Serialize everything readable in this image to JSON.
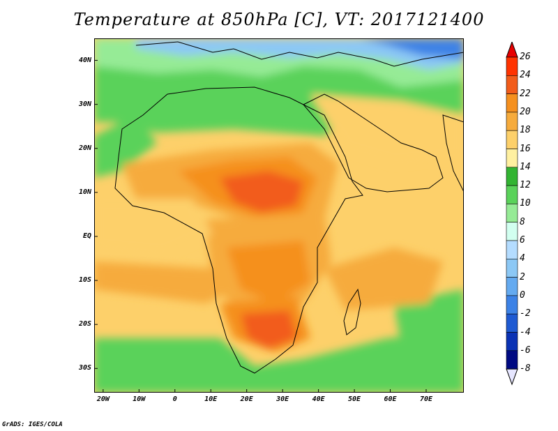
{
  "title": "Temperature at 850hPa [C], VT: 2017121400",
  "credit": "GrADS: IGES/COLA",
  "lat_axis": {
    "labels": [
      "40N",
      "30N",
      "20N",
      "10N",
      "EQ",
      "10S",
      "20S",
      "30S"
    ],
    "values": [
      40,
      30,
      20,
      10,
      0,
      -10,
      -20,
      -30
    ],
    "range": [
      -35.5,
      45
    ]
  },
  "lon_axis": {
    "labels": [
      "20W",
      "10W",
      "0",
      "10E",
      "20E",
      "30E",
      "40E",
      "50E",
      "60E",
      "70E"
    ],
    "values": [
      -20,
      -10,
      0,
      10,
      20,
      30,
      40,
      50,
      60,
      70
    ],
    "range": [
      -22.5,
      80.5
    ]
  },
  "colorbar": {
    "labels": [
      "26",
      "24",
      "22",
      "20",
      "18",
      "16",
      "14",
      "12",
      "10",
      "8",
      "6",
      "4",
      "2",
      "0",
      "-2",
      "-4",
      "-6",
      "-8"
    ],
    "values": [
      26,
      24,
      22,
      20,
      18,
      16,
      14,
      12,
      10,
      8,
      6,
      4,
      2,
      0,
      -2,
      -4,
      -6,
      -8
    ],
    "colors": [
      "#e60000",
      "#ff3300",
      "#f25c1a",
      "#f5901e",
      "#f6ab3c",
      "#fdd06a",
      "#fff0a0",
      "#32b432",
      "#5ad25a",
      "#96eb96",
      "#d2fff0",
      "#b4dcff",
      "#8cc8f5",
      "#64aaf0",
      "#3c82e6",
      "#1e5ad2",
      "#0a32b4",
      "#000a82",
      "#e6e6ff"
    ]
  }
}
